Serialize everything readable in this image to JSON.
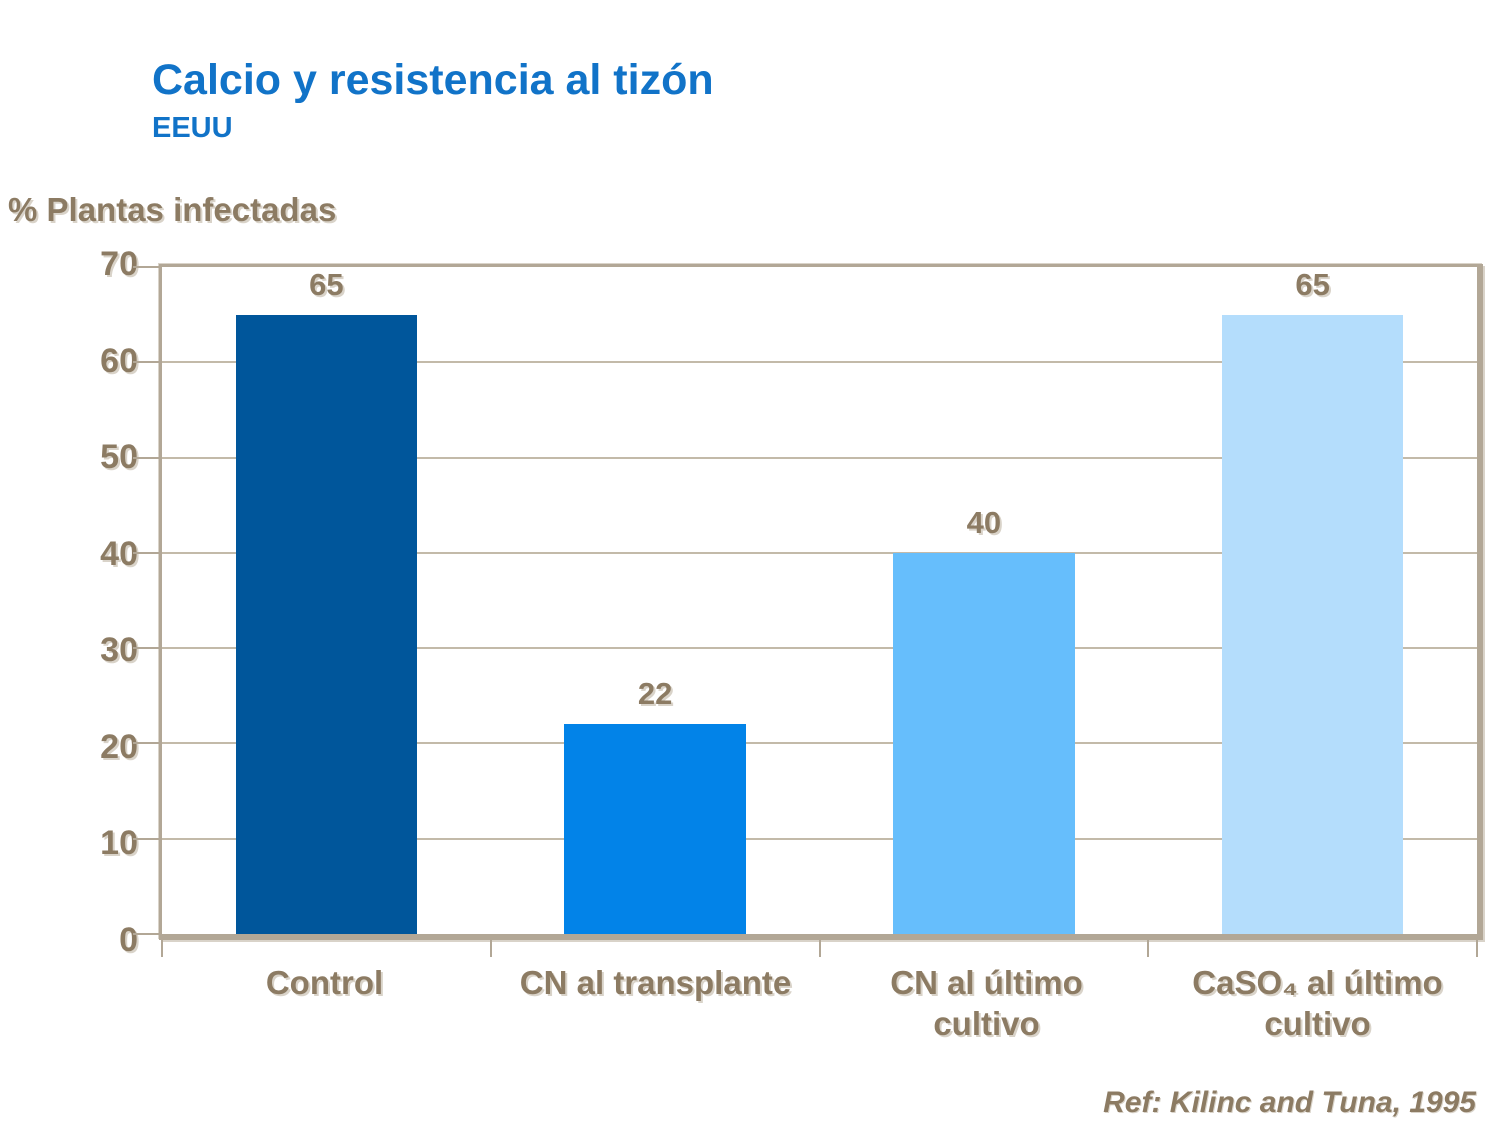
{
  "header": {
    "title": "Calcio y resistencia al tizón",
    "subtitle": "EEUU"
  },
  "chart_data": {
    "type": "bar",
    "title": "Calcio y resistencia al tizón",
    "subtitle": "EEUU",
    "ylabel": "% Plantas infectadas",
    "xlabel": "",
    "categories": [
      "Control",
      "CN al transplante",
      "CN al último cultivo",
      "CaSO₄ al último cultivo"
    ],
    "values": [
      65,
      22,
      40,
      65
    ],
    "value_labels": [
      "65",
      "22",
      "40",
      "65"
    ],
    "bar_colors": [
      "#00569b",
      "#0283e8",
      "#66befc",
      "#b4ddfc"
    ],
    "ylim": [
      0,
      70
    ],
    "ytick_step": 10,
    "grid": true,
    "legend": null
  },
  "footer": {
    "reference": "Ref: Kilinc and Tuna, 1995"
  },
  "colors": {
    "title_blue": "#1173c8",
    "text_brown": "#8c7b63",
    "frame_tan": "#b2a796",
    "gridline_tan": "#c3baa9"
  }
}
